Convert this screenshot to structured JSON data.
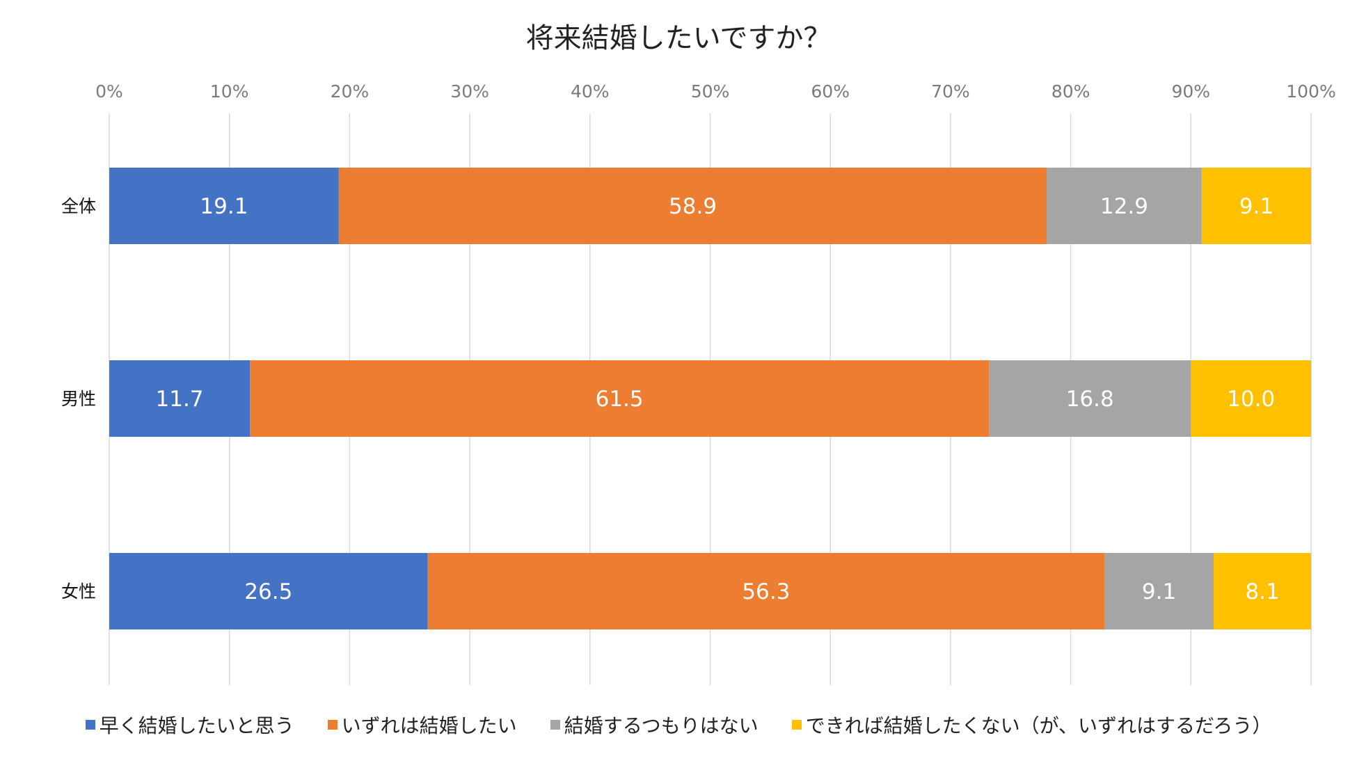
{
  "chart_data": {
    "type": "bar",
    "orientation": "horizontal",
    "stacked": true,
    "title": "将来結婚したいですか？",
    "xlim": [
      0,
      100
    ],
    "ticks": [
      "0%",
      "10%",
      "20%",
      "30%",
      "40%",
      "50%",
      "60%",
      "70%",
      "80%",
      "90%",
      "100%"
    ],
    "categories": [
      "全体",
      "男性",
      "女性"
    ],
    "grid": true,
    "legend_position": "bottom",
    "series": [
      {
        "name": "早く結婚したいと思う",
        "color": "#4472C4",
        "values": [
          19.1,
          11.7,
          26.5
        ],
        "labels": [
          "19.1",
          "11.7",
          "26.5"
        ]
      },
      {
        "name": "いずれは結婚したい",
        "color": "#ED7D31",
        "values": [
          58.9,
          61.5,
          56.3
        ],
        "labels": [
          "58.9",
          "61.5",
          "56.3"
        ]
      },
      {
        "name": "結婚するつもりはない",
        "color": "#A5A5A5",
        "values": [
          12.9,
          16.8,
          9.1
        ],
        "labels": [
          "12.9",
          "16.8",
          "9.1"
        ]
      },
      {
        "name": "できれば結婚したくない（が、いずれはするだろう）",
        "color": "#FFC000",
        "values": [
          9.1,
          10.0,
          8.1
        ],
        "labels": [
          "9.1",
          "10.0",
          "8.1"
        ]
      }
    ]
  }
}
